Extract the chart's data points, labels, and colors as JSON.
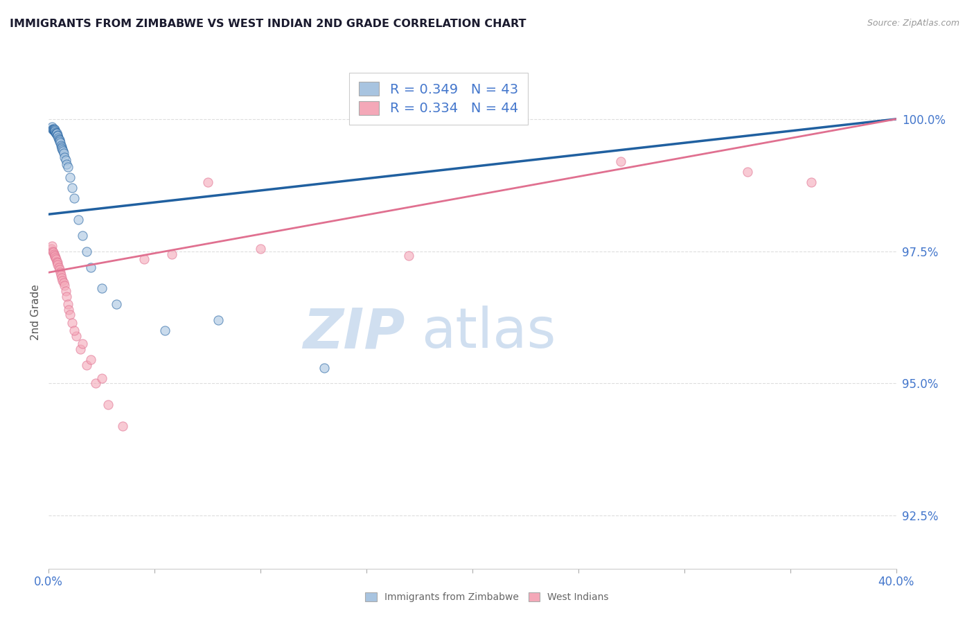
{
  "title": "IMMIGRANTS FROM ZIMBABWE VS WEST INDIAN 2ND GRADE CORRELATION CHART",
  "source_text": "Source: ZipAtlas.com",
  "ylabel": "2nd Grade",
  "xlim": [
    0.0,
    40.0
  ],
  "ylim": [
    91.5,
    101.2
  ],
  "yticks": [
    92.5,
    95.0,
    97.5,
    100.0
  ],
  "ytick_labels": [
    "92.5%",
    "95.0%",
    "97.5%",
    "100.0%"
  ],
  "xticks": [
    0.0,
    5.0,
    10.0,
    15.0,
    20.0,
    25.0,
    30.0,
    35.0,
    40.0
  ],
  "legend_r1": "R = 0.349   N = 43",
  "legend_r2": "R = 0.334   N = 44",
  "blue_color": "#a8c4e0",
  "pink_color": "#f4a8b8",
  "blue_line_color": "#2060a0",
  "pink_line_color": "#e07090",
  "tick_color": "#4477cc",
  "watermark_zip": "ZIP",
  "watermark_atlas": "atlas",
  "watermark_color": "#d0dff0",
  "blue_scatter_x": [
    0.15,
    0.18,
    0.2,
    0.22,
    0.25,
    0.25,
    0.27,
    0.28,
    0.3,
    0.3,
    0.32,
    0.35,
    0.35,
    0.38,
    0.4,
    0.42,
    0.45,
    0.48,
    0.5,
    0.52,
    0.55,
    0.58,
    0.6,
    0.62,
    0.65,
    0.68,
    0.7,
    0.75,
    0.8,
    0.85,
    0.9,
    1.0,
    1.1,
    1.2,
    1.4,
    1.6,
    1.8,
    2.0,
    2.5,
    3.2,
    5.5,
    8.0,
    13.0
  ],
  "blue_scatter_y": [
    99.85,
    99.82,
    99.8,
    99.8,
    99.82,
    99.79,
    99.78,
    99.76,
    99.8,
    99.78,
    99.75,
    99.74,
    99.72,
    99.73,
    99.7,
    99.68,
    99.65,
    99.62,
    99.6,
    99.58,
    99.55,
    99.5,
    99.48,
    99.45,
    99.42,
    99.4,
    99.35,
    99.28,
    99.22,
    99.15,
    99.1,
    98.9,
    98.7,
    98.5,
    98.1,
    97.8,
    97.5,
    97.2,
    96.8,
    96.5,
    96.0,
    96.2,
    95.3
  ],
  "pink_scatter_x": [
    0.12,
    0.15,
    0.2,
    0.22,
    0.25,
    0.28,
    0.3,
    0.32,
    0.35,
    0.38,
    0.4,
    0.43,
    0.47,
    0.5,
    0.55,
    0.58,
    0.62,
    0.65,
    0.7,
    0.75,
    0.8,
    0.85,
    0.9,
    0.95,
    1.0,
    1.1,
    1.3,
    1.5,
    1.8,
    2.2,
    2.8,
    3.5,
    4.5,
    5.8,
    7.5,
    10.0,
    17.0,
    27.0,
    33.0,
    36.0,
    1.2,
    1.6,
    2.0,
    2.5
  ],
  "pink_scatter_y": [
    97.55,
    97.6,
    97.5,
    97.48,
    97.45,
    97.4,
    97.42,
    97.38,
    97.35,
    97.3,
    97.28,
    97.25,
    97.2,
    97.15,
    97.1,
    97.05,
    97.0,
    96.95,
    96.9,
    96.85,
    96.75,
    96.65,
    96.5,
    96.4,
    96.3,
    96.15,
    95.9,
    95.65,
    95.35,
    95.0,
    94.6,
    94.2,
    97.35,
    97.45,
    98.8,
    97.55,
    97.42,
    99.2,
    99.0,
    98.8,
    96.0,
    95.75,
    95.45,
    95.1
  ],
  "blue_trend_x": [
    0.0,
    40.0
  ],
  "blue_trend_y": [
    98.2,
    100.0
  ],
  "pink_trend_x": [
    0.0,
    40.0
  ],
  "pink_trend_y": [
    97.1,
    100.0
  ],
  "background_color": "#ffffff",
  "grid_color": "#dddddd"
}
